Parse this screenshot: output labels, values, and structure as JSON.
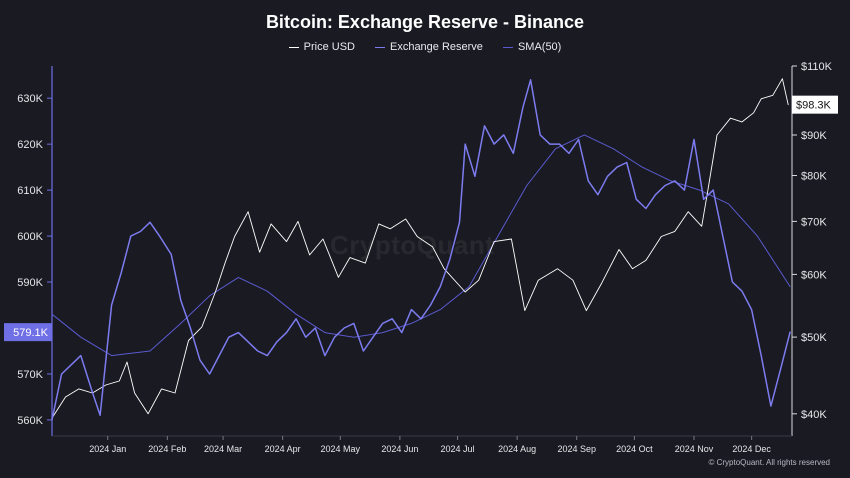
{
  "colors": {
    "background": "#1a1a22",
    "price": "#ffffff",
    "reserve": "#7c7cf0",
    "sma": "#5a5ad0",
    "axis_left": "#6f6fe6"
  },
  "watermark": "CryptoQuant",
  "copyright": "© CryptoQuant. All rights reserved",
  "chart_data": {
    "type": "line",
    "title": "Bitcoin: Exchange Reserve - Binance",
    "legend_position": "top-center",
    "grid": false,
    "left_axis": {
      "ticks": [
        "630K",
        "620K",
        "610K",
        "600K",
        "590K",
        "580K",
        "570K",
        "560K"
      ],
      "tick_values": [
        630000,
        620000,
        610000,
        600000,
        590000,
        580000,
        570000,
        560000
      ],
      "ylim": [
        556500,
        637000
      ],
      "current_value_label": "579.1K",
      "current_value": 579100
    },
    "right_axis": {
      "ticks": [
        "$110K",
        "$90K",
        "$80K",
        "$70K",
        "$60K",
        "$50K",
        "$40K"
      ],
      "tick_values": [
        110000,
        90000,
        80000,
        70000,
        60000,
        50000,
        40000
      ],
      "scale": "log",
      "ylim": [
        37500,
        110000
      ],
      "current_value_label": "$98.3K",
      "current_value": 98300
    },
    "x_axis": {
      "tick_labels": [
        "2024 Jan",
        "2024 Feb",
        "2024 Mar",
        "2024 Apr",
        "2024 May",
        "2024 Jun",
        "2024 Jul",
        "2024 Aug",
        "2024 Sep",
        "2024 Oct",
        "2024 Nov",
        "2024 Dec"
      ],
      "tick_dates": [
        "2024-01-01",
        "2024-02-01",
        "2024-03-01",
        "2024-04-01",
        "2024-05-01",
        "2024-06-01",
        "2024-07-01",
        "2024-08-01",
        "2024-09-01",
        "2024-10-01",
        "2024-11-01",
        "2024-12-01"
      ],
      "xlim": [
        "2023-12-03",
        "2024-12-22"
      ]
    },
    "series": [
      {
        "name": "Price USD",
        "axis": "right",
        "dates": [
          "2023-12-03",
          "2023-12-10",
          "2023-12-17",
          "2023-12-24",
          "2023-12-31",
          "2024-01-07",
          "2024-01-11",
          "2024-01-15",
          "2024-01-22",
          "2024-01-29",
          "2024-02-05",
          "2024-02-12",
          "2024-02-19",
          "2024-02-26",
          "2024-03-02",
          "2024-03-07",
          "2024-03-14",
          "2024-03-20",
          "2024-03-26",
          "2024-04-03",
          "2024-04-09",
          "2024-04-15",
          "2024-04-22",
          "2024-04-30",
          "2024-05-06",
          "2024-05-14",
          "2024-05-21",
          "2024-05-27",
          "2024-06-04",
          "2024-06-10",
          "2024-06-18",
          "2024-06-24",
          "2024-07-05",
          "2024-07-12",
          "2024-07-20",
          "2024-07-29",
          "2024-08-05",
          "2024-08-12",
          "2024-08-22",
          "2024-08-30",
          "2024-09-06",
          "2024-09-14",
          "2024-09-23",
          "2024-09-30",
          "2024-10-07",
          "2024-10-15",
          "2024-10-22",
          "2024-10-29",
          "2024-11-05",
          "2024-11-08",
          "2024-11-13",
          "2024-11-20",
          "2024-11-26",
          "2024-12-02",
          "2024-12-06",
          "2024-12-12",
          "2024-12-17",
          "2024-12-20"
        ],
        "values": [
          39500,
          42000,
          43000,
          42500,
          43500,
          44000,
          46500,
          42500,
          40000,
          43000,
          42500,
          49500,
          51500,
          57000,
          62000,
          67000,
          72000,
          64000,
          69500,
          66000,
          70000,
          63500,
          66500,
          59500,
          63000,
          62000,
          69500,
          68500,
          70500,
          67000,
          65000,
          61000,
          57000,
          59000,
          66000,
          66500,
          54000,
          59000,
          61000,
          59000,
          54000,
          58500,
          64500,
          61000,
          62500,
          67000,
          68000,
          72000,
          69000,
          76000,
          90000,
          94500,
          93500,
          96000,
          100000,
          101000,
          106000,
          98300
        ]
      },
      {
        "name": "Exchange Reserve",
        "axis": "left",
        "dates": [
          "2023-12-03",
          "2023-12-08",
          "2023-12-13",
          "2023-12-18",
          "2023-12-24",
          "2023-12-28",
          "2024-01-03",
          "2024-01-08",
          "2024-01-13",
          "2024-01-18",
          "2024-01-23",
          "2024-01-28",
          "2024-02-03",
          "2024-02-08",
          "2024-02-13",
          "2024-02-18",
          "2024-02-23",
          "2024-02-28",
          "2024-03-04",
          "2024-03-09",
          "2024-03-14",
          "2024-03-19",
          "2024-03-24",
          "2024-03-29",
          "2024-04-03",
          "2024-04-08",
          "2024-04-13",
          "2024-04-18",
          "2024-04-23",
          "2024-04-28",
          "2024-05-03",
          "2024-05-08",
          "2024-05-13",
          "2024-05-18",
          "2024-05-23",
          "2024-05-28",
          "2024-06-02",
          "2024-06-07",
          "2024-06-12",
          "2024-06-17",
          "2024-06-22",
          "2024-06-27",
          "2024-07-02",
          "2024-07-05",
          "2024-07-10",
          "2024-07-15",
          "2024-07-20",
          "2024-07-25",
          "2024-07-30",
          "2024-08-04",
          "2024-08-08",
          "2024-08-13",
          "2024-08-18",
          "2024-08-23",
          "2024-08-28",
          "2024-09-02",
          "2024-09-07",
          "2024-09-12",
          "2024-09-17",
          "2024-09-22",
          "2024-09-27",
          "2024-10-02",
          "2024-10-07",
          "2024-10-12",
          "2024-10-17",
          "2024-10-22",
          "2024-10-27",
          "2024-11-01",
          "2024-11-06",
          "2024-11-11",
          "2024-11-16",
          "2024-11-21",
          "2024-11-26",
          "2024-12-01",
          "2024-12-06",
          "2024-12-11",
          "2024-12-16",
          "2024-12-21"
        ],
        "values": [
          560000,
          570000,
          572000,
          574000,
          566000,
          561000,
          585000,
          592000,
          600000,
          601000,
          603000,
          600000,
          596000,
          586000,
          580000,
          573000,
          570000,
          574000,
          578000,
          579000,
          577000,
          575000,
          574000,
          577000,
          579000,
          582000,
          578000,
          580000,
          574000,
          578000,
          580000,
          581000,
          575000,
          578000,
          581000,
          582000,
          579000,
          584000,
          582000,
          585000,
          589000,
          595000,
          603000,
          620000,
          613000,
          624000,
          620000,
          622000,
          618000,
          628000,
          634000,
          622000,
          620000,
          620000,
          618000,
          621000,
          612000,
          609000,
          613000,
          615000,
          616000,
          608000,
          606000,
          609000,
          611000,
          612000,
          610000,
          621000,
          608000,
          610000,
          600000,
          590000,
          588000,
          584000,
          574000,
          563000,
          571000,
          579100
        ]
      },
      {
        "name": "SMA(50)",
        "axis": "left",
        "dates": [
          "2023-12-03",
          "2023-12-18",
          "2024-01-03",
          "2024-01-23",
          "2024-02-08",
          "2024-02-23",
          "2024-03-09",
          "2024-03-24",
          "2024-04-08",
          "2024-04-23",
          "2024-05-08",
          "2024-05-23",
          "2024-06-07",
          "2024-06-22",
          "2024-07-07",
          "2024-07-22",
          "2024-08-06",
          "2024-08-21",
          "2024-09-05",
          "2024-09-20",
          "2024-10-05",
          "2024-10-20",
          "2024-11-04",
          "2024-11-19",
          "2024-12-04",
          "2024-12-21"
        ],
        "values": [
          583000,
          578000,
          574000,
          575000,
          581000,
          587000,
          591000,
          588000,
          583000,
          579000,
          578000,
          579000,
          581000,
          584000,
          589000,
          600000,
          611000,
          619000,
          622000,
          619000,
          615000,
          612000,
          610000,
          607000,
          600000,
          589000
        ]
      }
    ]
  }
}
